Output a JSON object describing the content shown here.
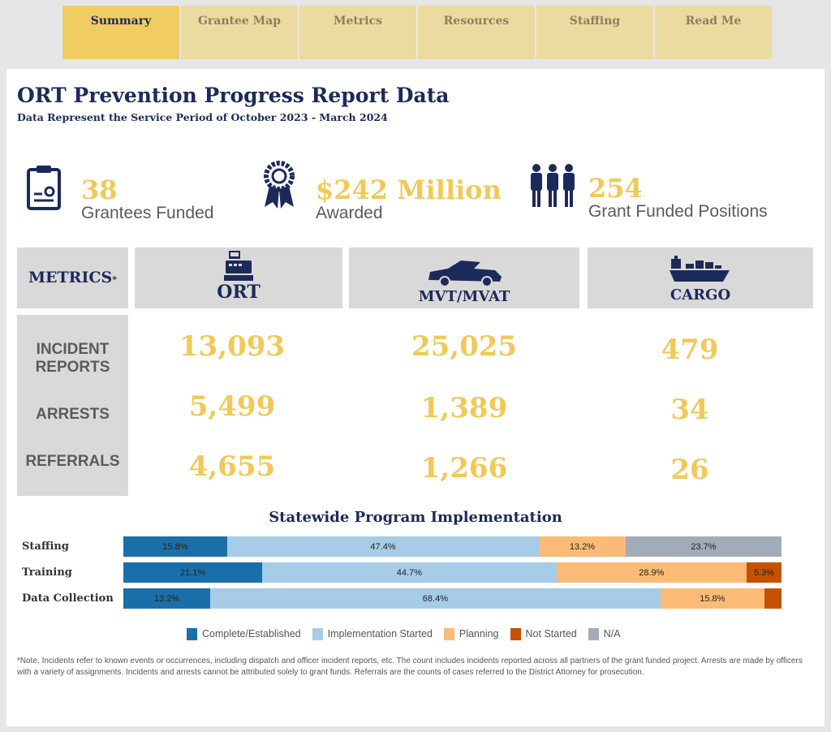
{
  "tabs": [
    "Summary",
    "Grantee Map",
    "Metrics",
    "Resources",
    "Staffing",
    "Read Me"
  ],
  "title": "ORT Prevention Progress Report Data",
  "subtitle": "Data Represent the Service Period of October 2023 - March 2024",
  "kpis": [
    {
      "value": "38",
      "label": "Grantees Funded",
      "icon": "clipboard-certificate-icon"
    },
    {
      "value": "$242 Million",
      "label": "Awarded",
      "icon": "award-ribbon-icon"
    },
    {
      "value": "254",
      "label": "Grant Funded Positions",
      "icon": "people-group-icon"
    }
  ],
  "metrics": {
    "header": "METRICS",
    "asterisk": "*",
    "columns": [
      "ORT",
      "MVT/MVAT",
      "CARGO"
    ],
    "rows": [
      {
        "label": "INCIDENT REPORTS",
        "values": [
          "13,093",
          "25,025",
          "479"
        ]
      },
      {
        "label": "ARRESTS",
        "values": [
          "5,499",
          "1,389",
          "34"
        ]
      },
      {
        "label": "REFERRALS",
        "values": [
          "4,655",
          "1,266",
          "26"
        ]
      }
    ]
  },
  "chart_data": {
    "type": "bar",
    "stacked": true,
    "orientation": "horizontal",
    "title": "Statewide Program Implementation",
    "categories": [
      "Staffing",
      "Training",
      "Data Collection"
    ],
    "xlim": [
      0,
      100
    ],
    "series": [
      {
        "name": "Complete/Established",
        "color": "#1a6fa8",
        "values": [
          15.8,
          21.1,
          13.2
        ],
        "labels": [
          "15.8%",
          "21.1%",
          "13.2%"
        ]
      },
      {
        "name": "Implementation Started",
        "color": "#a6cce8",
        "values": [
          47.4,
          44.7,
          68.4
        ],
        "labels": [
          "47.4%",
          "44.7%",
          "68.4%"
        ]
      },
      {
        "name": "Planning",
        "color": "#fbbb77",
        "values": [
          13.2,
          28.9,
          15.8
        ],
        "labels": [
          "13.2%",
          "28.9%",
          "15.8%"
        ]
      },
      {
        "name": "Not Started",
        "color": "#c65102",
        "values": [
          0,
          5.3,
          2.6
        ],
        "labels": [
          "",
          "5.3%",
          ""
        ]
      },
      {
        "name": "N/A",
        "color": "#a3abb8",
        "values": [
          23.7,
          0,
          0
        ],
        "labels": [
          "23.7%",
          "",
          ""
        ]
      }
    ],
    "legend": "bottom"
  },
  "note": "*Note. Incidents refer to known events or occurrences, including dispatch and officer incident reports, etc. The count includes incidents reported across all partners of the grant funded project. Arrests are made by officers with a variety of assignments. Incidents and arrests cannot be attributed solely to grant funds. Referrals are the counts of cases referred to the District Attorney for prosecution."
}
